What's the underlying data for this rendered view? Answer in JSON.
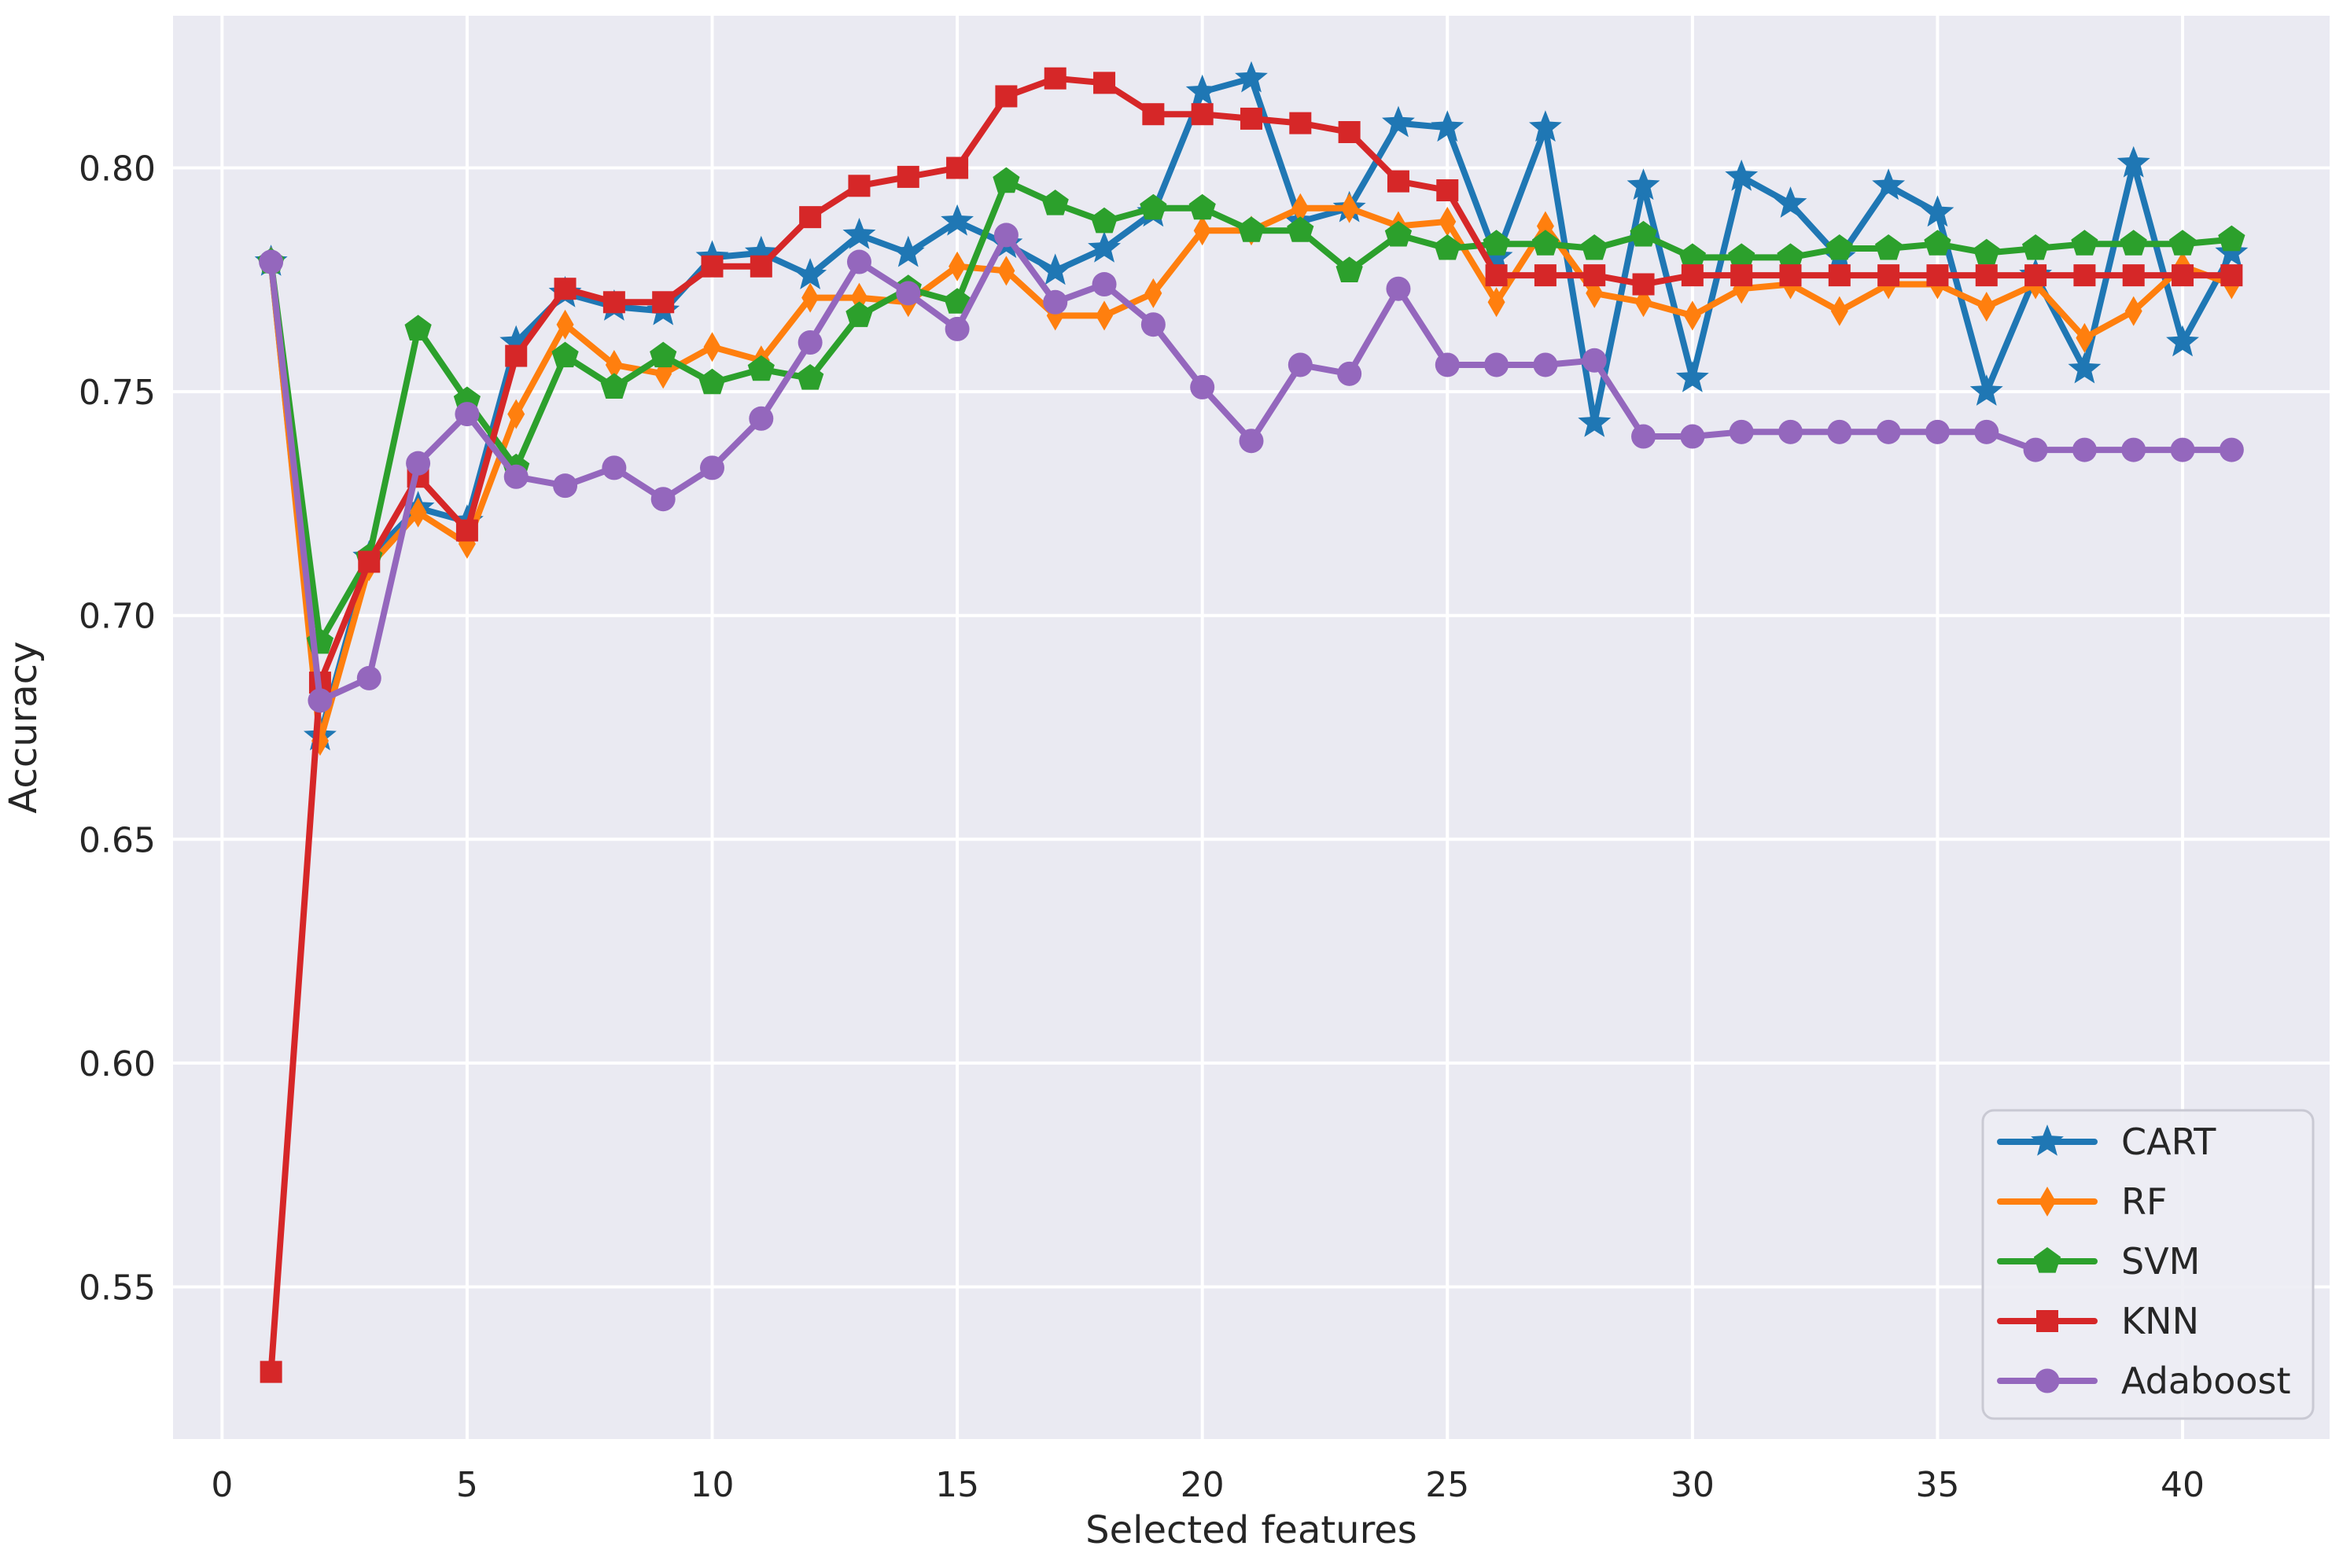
{
  "chart_data": {
    "type": "line",
    "title": "",
    "xlabel": "Selected features",
    "ylabel": "Accuracy",
    "x": [
      1,
      2,
      3,
      4,
      5,
      6,
      7,
      8,
      9,
      10,
      11,
      12,
      13,
      14,
      15,
      16,
      17,
      18,
      19,
      20,
      21,
      22,
      23,
      24,
      25,
      26,
      27,
      28,
      29,
      30,
      31,
      32,
      33,
      34,
      35,
      36,
      37,
      38,
      39,
      40,
      41
    ],
    "series": [
      {
        "name": "CART",
        "color": "#1f77b4",
        "marker": "star",
        "values": [
          0.779,
          0.673,
          0.713,
          0.724,
          0.721,
          0.761,
          0.772,
          0.769,
          0.768,
          0.78,
          0.781,
          0.776,
          0.785,
          0.781,
          0.788,
          0.783,
          0.777,
          0.782,
          0.79,
          0.817,
          0.82,
          0.788,
          0.791,
          0.81,
          0.809,
          0.78,
          0.809,
          0.743,
          0.796,
          0.753,
          0.798,
          0.792,
          0.78,
          0.796,
          0.79,
          0.75,
          0.776,
          0.755,
          0.801,
          0.761,
          0.781
        ]
      },
      {
        "name": "RF",
        "color": "#ff7f0e",
        "marker": "thin-diamond",
        "values": [
          0.779,
          0.672,
          0.711,
          0.723,
          0.716,
          0.745,
          0.765,
          0.756,
          0.754,
          0.76,
          0.757,
          0.771,
          0.771,
          0.77,
          0.778,
          0.777,
          0.767,
          0.767,
          0.772,
          0.786,
          0.786,
          0.791,
          0.791,
          0.787,
          0.788,
          0.77,
          0.787,
          0.772,
          0.77,
          0.767,
          0.773,
          0.774,
          0.768,
          0.774,
          0.774,
          0.769,
          0.774,
          0.762,
          0.768,
          0.778,
          0.774
        ]
      },
      {
        "name": "SVM",
        "color": "#2ca02c",
        "marker": "pentagon",
        "values": [
          0.779,
          0.694,
          0.713,
          0.764,
          0.748,
          0.733,
          0.758,
          0.751,
          0.758,
          0.752,
          0.755,
          0.753,
          0.767,
          0.773,
          0.77,
          0.797,
          0.792,
          0.788,
          0.791,
          0.791,
          0.786,
          0.786,
          0.777,
          0.785,
          0.782,
          0.783,
          0.783,
          0.782,
          0.785,
          0.78,
          0.78,
          0.78,
          0.782,
          0.782,
          0.783,
          0.781,
          0.782,
          0.783,
          0.783,
          0.783,
          0.784
        ]
      },
      {
        "name": "KNN",
        "color": "#d62728",
        "marker": "square",
        "values": [
          0.531,
          0.685,
          0.712,
          0.731,
          0.719,
          0.758,
          0.773,
          0.77,
          0.77,
          0.778,
          0.778,
          0.789,
          0.796,
          0.798,
          0.8,
          0.816,
          0.82,
          0.819,
          0.812,
          0.812,
          0.811,
          0.81,
          0.808,
          0.797,
          0.795,
          0.776,
          0.776,
          0.776,
          0.774,
          0.776,
          0.776,
          0.776,
          0.776,
          0.776,
          0.776,
          0.776,
          0.776,
          0.776,
          0.776,
          0.776,
          0.776
        ]
      },
      {
        "name": "Adaboost",
        "color": "#9467bd",
        "marker": "circle",
        "values": [
          0.779,
          0.681,
          0.686,
          0.734,
          0.745,
          0.731,
          0.729,
          0.733,
          0.726,
          0.733,
          0.744,
          0.761,
          0.779,
          0.772,
          0.764,
          0.785,
          0.77,
          0.774,
          0.765,
          0.751,
          0.739,
          0.756,
          0.754,
          0.773,
          0.756,
          0.756,
          0.756,
          0.757,
          0.74,
          0.74,
          0.741,
          0.741,
          0.741,
          0.741,
          0.741,
          0.741,
          0.737,
          0.737,
          0.737,
          0.737,
          0.737
        ]
      }
    ],
    "xticks": {
      "values": [
        0,
        5,
        10,
        15,
        20,
        25,
        30,
        35,
        40
      ],
      "labels": [
        "0",
        "5",
        "10",
        "15",
        "20",
        "25",
        "30",
        "35",
        "40"
      ]
    },
    "yticks": {
      "values": [
        0.55,
        0.6,
        0.65,
        0.7,
        0.75,
        0.8
      ],
      "labels": [
        "0.55",
        "0.60",
        "0.65",
        "0.70",
        "0.75",
        "0.80"
      ]
    },
    "xlim": [
      -1,
      43
    ],
    "ylim": [
      0.516,
      0.834
    ],
    "grid": true,
    "legend_position": "lower right",
    "legend_entries": [
      "CART",
      "RF",
      "SVM",
      "KNN",
      "Adaboost"
    ],
    "colors": {
      "axes_background": "#eaeaf2",
      "grid": "#ffffff",
      "text": "#262626",
      "legend_border": "#c9c9d3",
      "legend_background": "#ededf4"
    }
  }
}
